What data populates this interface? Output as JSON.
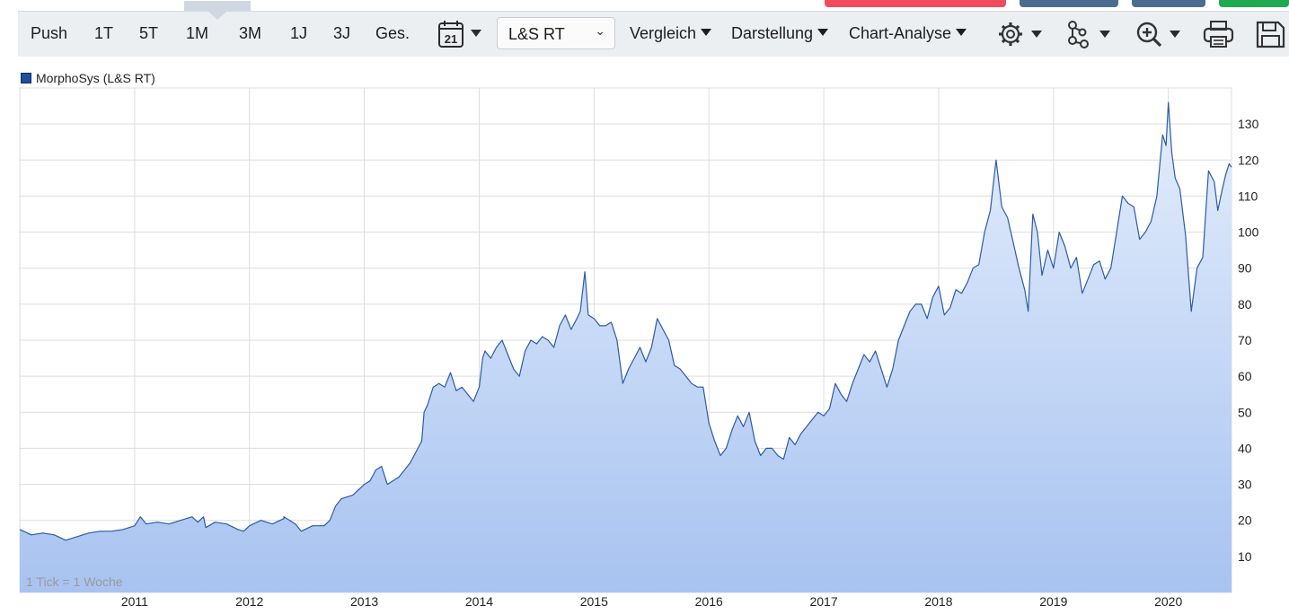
{
  "toolbar": {
    "periods": [
      "Push",
      "1T",
      "5T",
      "1M",
      "3M",
      "1J",
      "3J",
      "Ges."
    ],
    "active_period": "1M",
    "calendar_day": "21",
    "exchange": "L&S RT",
    "menus": [
      "Vergleich",
      "Darstellung",
      "Chart-Analyse"
    ],
    "icons": [
      "gear-icon",
      "network-icon",
      "zoom-in-icon",
      "print-icon",
      "save-icon"
    ],
    "top_strip_colors": [
      "#f24b5e",
      "#4a6d8f",
      "#4a6d8f",
      "#1faa52"
    ]
  },
  "legend": {
    "label": "MorphoSys (L&S RT)",
    "color": "#1f4e9c"
  },
  "footnote": "1 Tick = 1 Woche",
  "colors": {
    "line": "#2c5aa8",
    "fill_top": "#e4eefc",
    "fill_bottom": "#a8c3f0",
    "grid": "#dddddd"
  },
  "chart_data": {
    "type": "area",
    "title": "",
    "xlabel": "",
    "ylabel": "",
    "x_ticks": [
      "2011",
      "2012",
      "2013",
      "2014",
      "2015",
      "2016",
      "2017",
      "2018",
      "2019",
      "2020"
    ],
    "y_ticks": [
      10,
      20,
      30,
      40,
      50,
      60,
      70,
      80,
      90,
      100,
      110,
      120,
      130
    ],
    "xlim": [
      2010.0,
      2020.55
    ],
    "ylim": [
      0,
      140
    ],
    "grid": true,
    "legend_position": "top-left",
    "series": [
      {
        "name": "MorphoSys (L&S RT)",
        "points": [
          [
            2010.0,
            17.5
          ],
          [
            2010.1,
            16
          ],
          [
            2010.2,
            16.5
          ],
          [
            2010.3,
            16
          ],
          [
            2010.4,
            14.5
          ],
          [
            2010.5,
            15.5
          ],
          [
            2010.6,
            16.5
          ],
          [
            2010.7,
            17
          ],
          [
            2010.8,
            17
          ],
          [
            2010.9,
            17.5
          ],
          [
            2011.0,
            18.5
          ],
          [
            2011.05,
            21
          ],
          [
            2011.1,
            19
          ],
          [
            2011.2,
            19.5
          ],
          [
            2011.3,
            19
          ],
          [
            2011.4,
            20
          ],
          [
            2011.5,
            21
          ],
          [
            2011.55,
            19.5
          ],
          [
            2011.6,
            21
          ],
          [
            2011.62,
            18
          ],
          [
            2011.7,
            19.5
          ],
          [
            2011.8,
            19
          ],
          [
            2011.9,
            17.5
          ],
          [
            2011.95,
            17
          ],
          [
            2012.0,
            18.5
          ],
          [
            2012.1,
            20
          ],
          [
            2012.2,
            19
          ],
          [
            2012.3,
            20.5
          ],
          [
            2012.3,
            21
          ],
          [
            2012.35,
            20
          ],
          [
            2012.4,
            19
          ],
          [
            2012.45,
            17
          ],
          [
            2012.55,
            18.5
          ],
          [
            2012.65,
            18.5
          ],
          [
            2012.7,
            20
          ],
          [
            2012.75,
            24
          ],
          [
            2012.8,
            26
          ],
          [
            2012.9,
            27
          ],
          [
            2013.0,
            30
          ],
          [
            2013.05,
            31
          ],
          [
            2013.1,
            34
          ],
          [
            2013.15,
            35
          ],
          [
            2013.2,
            30
          ],
          [
            2013.3,
            32
          ],
          [
            2013.35,
            34
          ],
          [
            2013.4,
            36
          ],
          [
            2013.45,
            39
          ],
          [
            2013.5,
            42
          ],
          [
            2013.52,
            50
          ],
          [
            2013.55,
            52
          ],
          [
            2013.6,
            57
          ],
          [
            2013.65,
            58
          ],
          [
            2013.7,
            57
          ],
          [
            2013.75,
            61
          ],
          [
            2013.8,
            56
          ],
          [
            2013.85,
            57
          ],
          [
            2013.9,
            55
          ],
          [
            2013.95,
            53
          ],
          [
            2014.0,
            57
          ],
          [
            2014.03,
            65
          ],
          [
            2014.05,
            67
          ],
          [
            2014.1,
            65
          ],
          [
            2014.15,
            68
          ],
          [
            2014.2,
            70
          ],
          [
            2014.25,
            66
          ],
          [
            2014.3,
            62
          ],
          [
            2014.35,
            60
          ],
          [
            2014.4,
            67
          ],
          [
            2014.45,
            70
          ],
          [
            2014.5,
            69
          ],
          [
            2014.55,
            71
          ],
          [
            2014.6,
            70
          ],
          [
            2014.65,
            68
          ],
          [
            2014.7,
            74
          ],
          [
            2014.75,
            77
          ],
          [
            2014.8,
            73
          ],
          [
            2014.85,
            76
          ],
          [
            2014.88,
            78
          ],
          [
            2014.92,
            89
          ],
          [
            2014.95,
            77
          ],
          [
            2015.0,
            76
          ],
          [
            2015.05,
            74
          ],
          [
            2015.1,
            74
          ],
          [
            2015.15,
            75
          ],
          [
            2015.2,
            70
          ],
          [
            2015.25,
            58
          ],
          [
            2015.3,
            62
          ],
          [
            2015.35,
            65
          ],
          [
            2015.4,
            68
          ],
          [
            2015.45,
            64
          ],
          [
            2015.5,
            68
          ],
          [
            2015.55,
            76
          ],
          [
            2015.6,
            73
          ],
          [
            2015.65,
            70
          ],
          [
            2015.7,
            63
          ],
          [
            2015.75,
            62
          ],
          [
            2015.8,
            60
          ],
          [
            2015.85,
            58
          ],
          [
            2015.9,
            57
          ],
          [
            2015.95,
            57
          ],
          [
            2016.0,
            47
          ],
          [
            2016.05,
            42
          ],
          [
            2016.1,
            38
          ],
          [
            2016.15,
            40
          ],
          [
            2016.2,
            45
          ],
          [
            2016.25,
            49
          ],
          [
            2016.3,
            46
          ],
          [
            2016.35,
            50
          ],
          [
            2016.4,
            42
          ],
          [
            2016.45,
            38
          ],
          [
            2016.5,
            40
          ],
          [
            2016.55,
            40
          ],
          [
            2016.6,
            38
          ],
          [
            2016.65,
            37
          ],
          [
            2016.7,
            43
          ],
          [
            2016.75,
            41
          ],
          [
            2016.8,
            44
          ],
          [
            2016.85,
            46
          ],
          [
            2016.9,
            48
          ],
          [
            2016.95,
            50
          ],
          [
            2017.0,
            49
          ],
          [
            2017.05,
            51
          ],
          [
            2017.1,
            58
          ],
          [
            2017.15,
            55
          ],
          [
            2017.2,
            53
          ],
          [
            2017.25,
            58
          ],
          [
            2017.3,
            62
          ],
          [
            2017.35,
            66
          ],
          [
            2017.4,
            64
          ],
          [
            2017.45,
            67
          ],
          [
            2017.5,
            62
          ],
          [
            2017.55,
            57
          ],
          [
            2017.6,
            62
          ],
          [
            2017.65,
            70
          ],
          [
            2017.7,
            74
          ],
          [
            2017.75,
            78
          ],
          [
            2017.8,
            80
          ],
          [
            2017.85,
            80
          ],
          [
            2017.9,
            76
          ],
          [
            2017.95,
            82
          ],
          [
            2018.0,
            85
          ],
          [
            2018.05,
            77
          ],
          [
            2018.1,
            79
          ],
          [
            2018.15,
            84
          ],
          [
            2018.2,
            83
          ],
          [
            2018.25,
            86
          ],
          [
            2018.3,
            90
          ],
          [
            2018.35,
            91
          ],
          [
            2018.4,
            100
          ],
          [
            2018.45,
            106
          ],
          [
            2018.5,
            120
          ],
          [
            2018.55,
            107
          ],
          [
            2018.6,
            104
          ],
          [
            2018.65,
            97
          ],
          [
            2018.7,
            90
          ],
          [
            2018.75,
            84
          ],
          [
            2018.78,
            78
          ],
          [
            2018.82,
            105
          ],
          [
            2018.86,
            100
          ],
          [
            2018.9,
            88
          ],
          [
            2018.95,
            95
          ],
          [
            2019.0,
            90
          ],
          [
            2019.05,
            100
          ],
          [
            2019.1,
            96
          ],
          [
            2019.15,
            90
          ],
          [
            2019.2,
            93
          ],
          [
            2019.25,
            83
          ],
          [
            2019.3,
            87
          ],
          [
            2019.35,
            91
          ],
          [
            2019.4,
            92
          ],
          [
            2019.45,
            87
          ],
          [
            2019.5,
            90
          ],
          [
            2019.55,
            100
          ],
          [
            2019.6,
            110
          ],
          [
            2019.65,
            108
          ],
          [
            2019.7,
            107
          ],
          [
            2019.75,
            98
          ],
          [
            2019.8,
            100
          ],
          [
            2019.85,
            103
          ],
          [
            2019.9,
            110
          ],
          [
            2019.95,
            127
          ],
          [
            2019.98,
            124
          ],
          [
            2020.0,
            136
          ],
          [
            2020.03,
            122
          ],
          [
            2020.06,
            115
          ],
          [
            2020.1,
            112
          ],
          [
            2020.15,
            99
          ],
          [
            2020.2,
            78
          ],
          [
            2020.25,
            90
          ],
          [
            2020.3,
            93
          ],
          [
            2020.35,
            117
          ],
          [
            2020.4,
            114
          ],
          [
            2020.43,
            106
          ],
          [
            2020.47,
            112
          ],
          [
            2020.5,
            116
          ],
          [
            2020.53,
            119
          ],
          [
            2020.55,
            118
          ]
        ]
      }
    ]
  }
}
